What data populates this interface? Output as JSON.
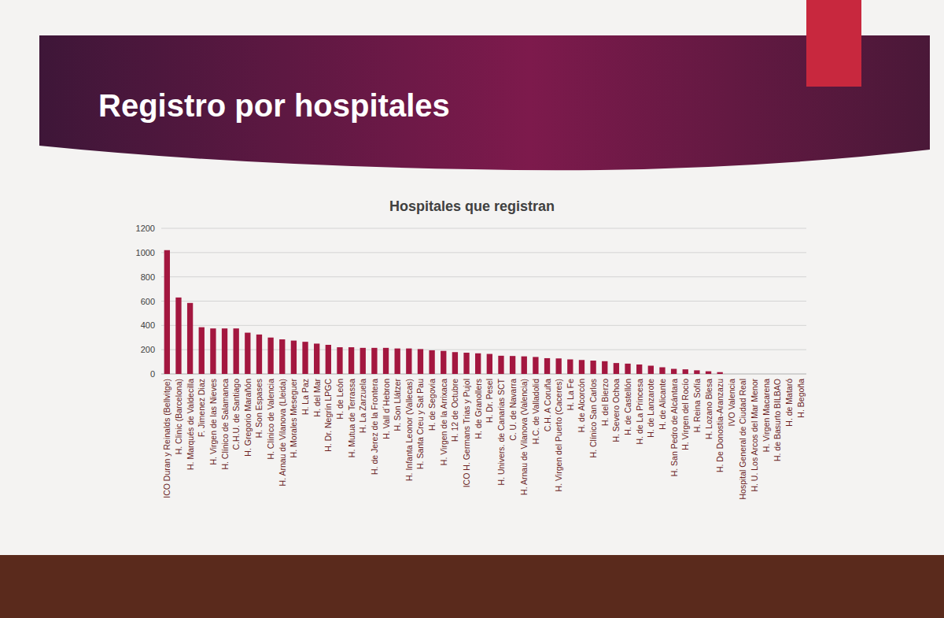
{
  "header": {
    "title": "Registro por hospitales"
  },
  "chart_data": {
    "type": "bar",
    "title": "Hospitales que registran",
    "categories": [
      "ICO Duran y Reinalds (Bellvitge)",
      "H. Clinic (Barcelona)",
      "H. Marqués de Valdecilla",
      "F. Jimenez Diaz",
      "H. Virgen de las Nieves",
      "H. Clínico de Salamanca",
      "C.H.U. de Santiago",
      "H. Gregorio Marañón",
      "H. Son Espases",
      "H. Clínico de Valencia",
      "H. Arnau de Vilanova (Lleida)",
      "H. Morales Meseguer",
      "H. La Paz",
      "H. del Mar",
      "H. Dr. Negrín LPGC",
      "H. de León",
      "H. Mutua de Terrassa",
      "H. La Zarzuela",
      "H. de Jerez de la Frontera",
      "H. Vall d´Hebron",
      "H. Son Llátzer",
      "H. Infanta Leonor (Vallecas)",
      "H. Santa Creu y Sat Pau",
      "H. de Segovia",
      "H. Virgen de la Arrixaca",
      "H. 12 de Octubre",
      "ICO H. Germans Trias y Pujol",
      "H. de Granollers",
      "H. Dr. Pesel",
      "H. Univers. de Canarias SCT",
      "C. U. de Navarra",
      "H. Arnau de Vilanova (Valencia)",
      "H.C. de Valladolid",
      "C.H. A Coruña",
      "H. Virgen del Puerto (Caceres)",
      "H. La Fe",
      "H. de Alcorcón",
      "H. Clínico San Carlos",
      "H. del Bierzo",
      "H. Severo Ochoa",
      "H. de Castellón",
      "H. de La Princesa",
      "H. de Lanzarote",
      "H. de Alicante",
      "H. San Pedro de Alcántara",
      "H. Virgen del Rocío",
      "H. Reina Sofía",
      "H. Lozano Blesa",
      "H. De Donostia-Aranzazu",
      "IVO Valencia",
      "Hospital General de Ciudad Real",
      "H. U. Los Arcos del Mar Menor",
      "H. Virgen Macarena",
      "H. de Basurto BILBAO",
      "H. de Mataró",
      "H. Begoña"
    ],
    "values": [
      1020,
      630,
      585,
      385,
      375,
      375,
      375,
      340,
      325,
      300,
      285,
      275,
      265,
      250,
      240,
      220,
      220,
      215,
      215,
      215,
      210,
      210,
      205,
      195,
      190,
      180,
      175,
      170,
      165,
      150,
      148,
      145,
      140,
      130,
      128,
      120,
      115,
      110,
      105,
      90,
      85,
      78,
      68,
      55,
      42,
      38,
      30,
      22,
      15,
      0,
      0,
      0,
      0,
      0,
      0,
      0
    ],
    "color": "#a3173f",
    "ylim": [
      0,
      1200
    ],
    "yticks": [
      0,
      200,
      400,
      600,
      800,
      1000,
      1200
    ],
    "grid": true
  }
}
